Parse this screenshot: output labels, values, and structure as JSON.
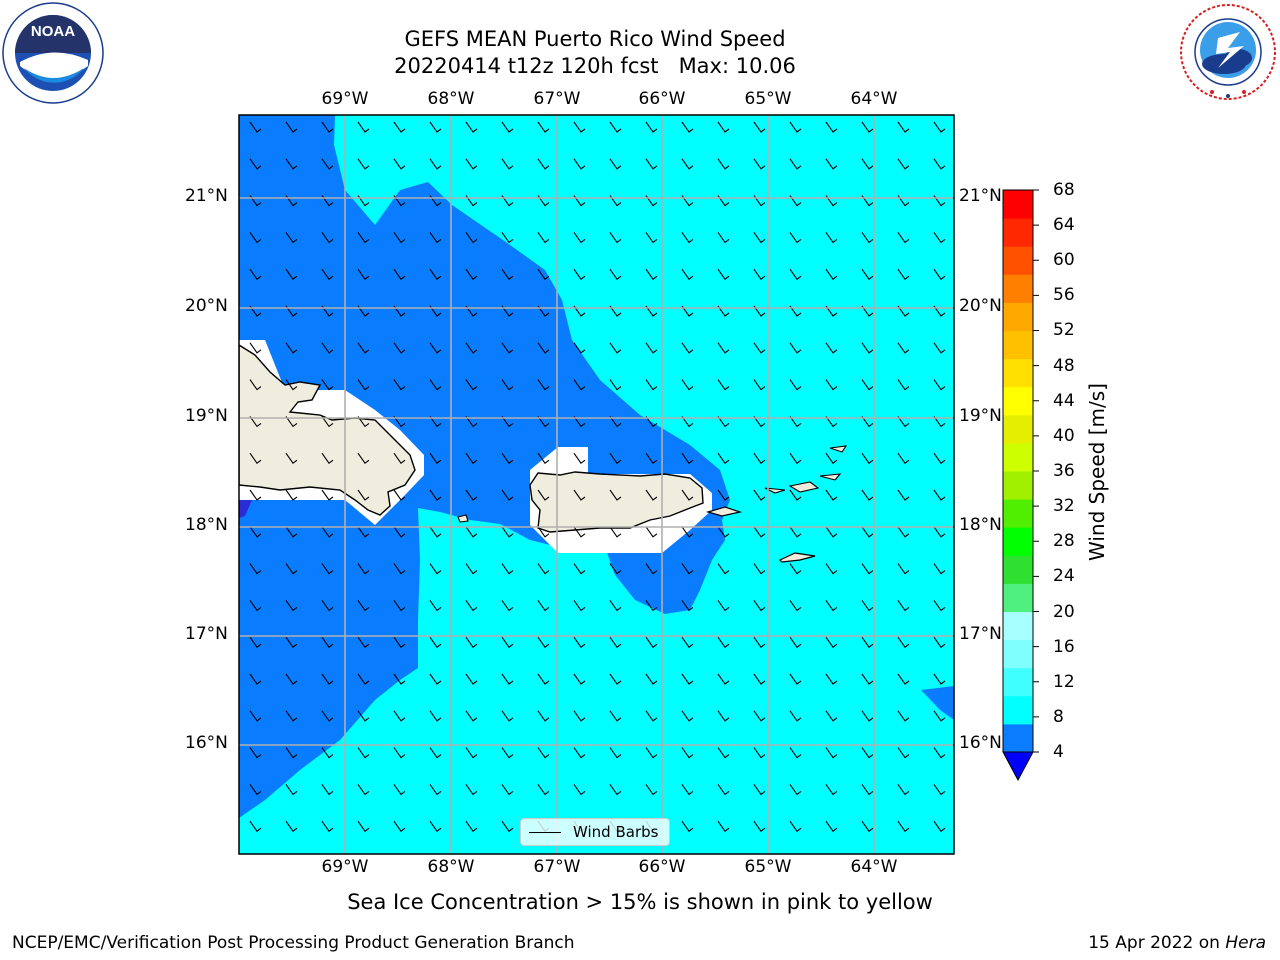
{
  "header": {
    "title_line1": "GEFS MEAN Puerto Rico Wind Speed",
    "title_line2": "20220414 t12z 120h fcst   Max: 10.06"
  },
  "logos": {
    "left": "noaa-logo",
    "right": "national-weather-service-logo"
  },
  "map": {
    "lon_labels": [
      "69°W",
      "68°W",
      "67°W",
      "66°W",
      "65°W",
      "64°W"
    ],
    "lat_labels": [
      "21°N",
      "20°N",
      "19°N",
      "18°N",
      "17°N",
      "16°N"
    ],
    "legend_label": "Wind Barbs",
    "colors": {
      "ocean_low": "#0a7cff",
      "ocean_mid": "#00ffff",
      "land": "#efedde",
      "grid": "#b0b0b0",
      "dark_blue": "#2b2bd8"
    }
  },
  "colorbar": {
    "label": "Wind Speed [m/s]",
    "ticks": [
      "68",
      "64",
      "60",
      "56",
      "52",
      "48",
      "44",
      "40",
      "36",
      "32",
      "28",
      "24",
      "20",
      "16",
      "12",
      "8",
      "4"
    ],
    "colors": [
      "#0000ff",
      "#0a7cff",
      "#00ffff",
      "#40ffff",
      "#80ffff",
      "#a8ffff",
      "#50f080",
      "#30e030",
      "#00ff00",
      "#50ee00",
      "#a0f000",
      "#cdff00",
      "#e6ee00",
      "#ffff00",
      "#ffe000",
      "#ffc000",
      "#ffa800",
      "#ff8000",
      "#ff5000",
      "#ff2800",
      "#ff0000"
    ]
  },
  "note": "Sea Ice Concentration > 15% is shown in pink to yellow",
  "footer": {
    "left": "NCEP/EMC/Verification Post Processing Product Generation Branch",
    "date": "15 Apr 2022 on ",
    "host": "Hera"
  }
}
